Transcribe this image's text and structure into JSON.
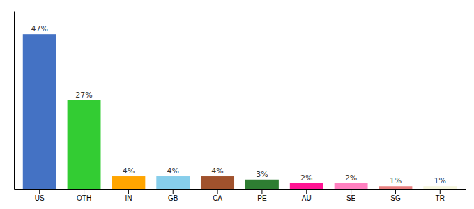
{
  "chart_data": {
    "type": "bar",
    "categories": [
      "US",
      "OTH",
      "IN",
      "GB",
      "CA",
      "PE",
      "AU",
      "SE",
      "SG",
      "TR"
    ],
    "values": [
      47,
      27,
      4,
      4,
      4,
      3,
      2,
      2,
      1,
      1
    ],
    "value_labels": [
      "47%",
      "27%",
      "4%",
      "4%",
      "4%",
      "3%",
      "2%",
      "2%",
      "1%",
      "1%"
    ],
    "colors": [
      "#4472C4",
      "#33CC33",
      "#FFA500",
      "#87CEEB",
      "#A0522D",
      "#2E7D32",
      "#FF1493",
      "#FF80C0",
      "#E88080",
      "#F5F5DC"
    ],
    "ylim": [
      0,
      54
    ],
    "yticks": [],
    "grid": false,
    "data_labels": true,
    "tick_labels": "x"
  }
}
